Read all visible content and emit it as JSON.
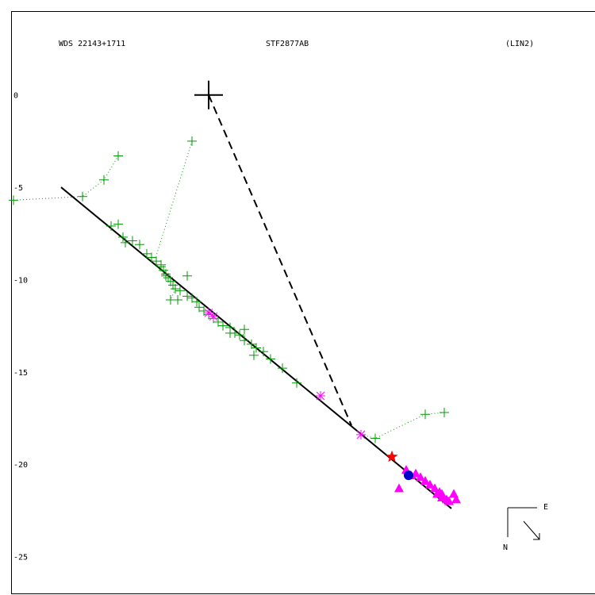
{
  "header": {
    "left": "WDS 22143+1711",
    "center": "STF2877AB",
    "right": "(LIN2)"
  },
  "compass": {
    "east": "E",
    "north": "N"
  },
  "colors": {
    "measure": "#009900",
    "measure_line": "#009900",
    "magenta": "#ff00ff",
    "highlight": "#ff0000",
    "blue": "#0000cc",
    "fit": "#000000"
  },
  "chart_data": {
    "type": "scatter",
    "title": "",
    "xlim": [
      -8.3,
      16.4
    ],
    "ylim": [
      -27,
      4.5
    ],
    "y_ticks": [
      {
        "value": 0,
        "label": "0"
      },
      {
        "value": -5,
        "label": "-5"
      },
      {
        "value": -10,
        "label": "-10"
      },
      {
        "value": -15,
        "label": "-15"
      },
      {
        "value": -20,
        "label": "-20"
      },
      {
        "value": -25,
        "label": "-25"
      }
    ],
    "primary": {
      "x": 0,
      "y": 0
    },
    "fit_line": [
      [
        -6.2,
        -5.0
      ],
      [
        10.2,
        -22.4
      ]
    ],
    "dashed_line": [
      [
        0,
        0
      ],
      [
        6.0,
        -17.9
      ]
    ],
    "highlight_point": {
      "x": 7.7,
      "y": -19.6
    },
    "blue_point": {
      "x": 8.4,
      "y": -20.6
    },
    "green_plus": [
      [
        -8.2,
        -5.7
      ],
      [
        -5.3,
        -5.5
      ],
      [
        -4.4,
        -4.6
      ],
      [
        -3.8,
        -3.3
      ],
      [
        -0.7,
        -2.5
      ],
      [
        -4.1,
        -7.1
      ],
      [
        -3.8,
        -7.0
      ],
      [
        -3.6,
        -7.7
      ],
      [
        -3.5,
        -8.0
      ],
      [
        -3.2,
        -7.9
      ],
      [
        -2.9,
        -8.1
      ],
      [
        -2.6,
        -8.6
      ],
      [
        -2.4,
        -8.8
      ],
      [
        -2.2,
        -9.0
      ],
      [
        -2.0,
        -9.2
      ],
      [
        -1.9,
        -9.5
      ],
      [
        -1.8,
        -9.7
      ],
      [
        -1.7,
        -9.9
      ],
      [
        -1.6,
        -10.1
      ],
      [
        -1.5,
        -10.3
      ],
      [
        -1.4,
        -10.5
      ],
      [
        -1.2,
        -10.6
      ],
      [
        -0.9,
        -9.8
      ],
      [
        -1.6,
        -11.1
      ],
      [
        -1.3,
        -11.1
      ],
      [
        -0.9,
        -10.9
      ],
      [
        -0.7,
        -11.0
      ],
      [
        -0.5,
        -11.2
      ],
      [
        -0.4,
        -11.5
      ],
      [
        -0.2,
        -11.7
      ],
      [
        0.0,
        -11.9
      ],
      [
        0.2,
        -12.1
      ],
      [
        0.4,
        -12.3
      ],
      [
        0.6,
        -12.5
      ],
      [
        0.9,
        -12.6
      ],
      [
        1.1,
        -12.9
      ],
      [
        1.3,
        -13.0
      ],
      [
        1.5,
        -13.3
      ],
      [
        1.8,
        -13.5
      ],
      [
        2.0,
        -13.7
      ],
      [
        1.9,
        -14.1
      ],
      [
        2.3,
        -13.9
      ],
      [
        2.6,
        -14.3
      ],
      [
        3.1,
        -14.8
      ],
      [
        3.7,
        -15.6
      ],
      [
        7.0,
        -18.6
      ],
      [
        9.1,
        -17.3
      ],
      [
        9.9,
        -17.2
      ],
      [
        -2.0,
        -9.3
      ],
      [
        -1.8,
        -9.8
      ],
      [
        0.9,
        -12.9
      ],
      [
        1.5,
        -12.7
      ]
    ],
    "green_links": [
      [
        [
          -8.2,
          -5.7
        ],
        [
          -5.3,
          -5.5
        ],
        [
          -4.4,
          -4.6
        ],
        [
          -3.8,
          -3.3
        ]
      ],
      [
        [
          -0.7,
          -2.5
        ],
        [
          -2.2,
          -8.7
        ]
      ],
      [
        [
          -1.4,
          -10.5
        ],
        [
          -1.6,
          -11.1
        ]
      ],
      [
        [
          6.4,
          -18.4
        ],
        [
          7.0,
          -18.6
        ],
        [
          9.1,
          -17.3
        ],
        [
          9.9,
          -17.2
        ]
      ]
    ],
    "magenta_star": [
      [
        0.0,
        -11.8
      ],
      [
        0.2,
        -12.0
      ],
      [
        4.7,
        -16.3
      ],
      [
        6.4,
        -18.4
      ]
    ],
    "magenta_triangle": [
      [
        8.0,
        -21.3
      ],
      [
        8.3,
        -20.3
      ],
      [
        8.5,
        -20.6
      ],
      [
        8.7,
        -20.5
      ],
      [
        8.9,
        -20.7
      ],
      [
        9.1,
        -20.9
      ],
      [
        9.3,
        -21.1
      ],
      [
        9.5,
        -21.3
      ],
      [
        9.7,
        -21.5
      ],
      [
        9.8,
        -21.8
      ],
      [
        10.0,
        -21.9
      ],
      [
        9.8,
        -21.6
      ],
      [
        10.3,
        -21.6
      ],
      [
        10.4,
        -21.9
      ],
      [
        9.6,
        -21.6
      ],
      [
        10.1,
        -22.0
      ]
    ]
  }
}
